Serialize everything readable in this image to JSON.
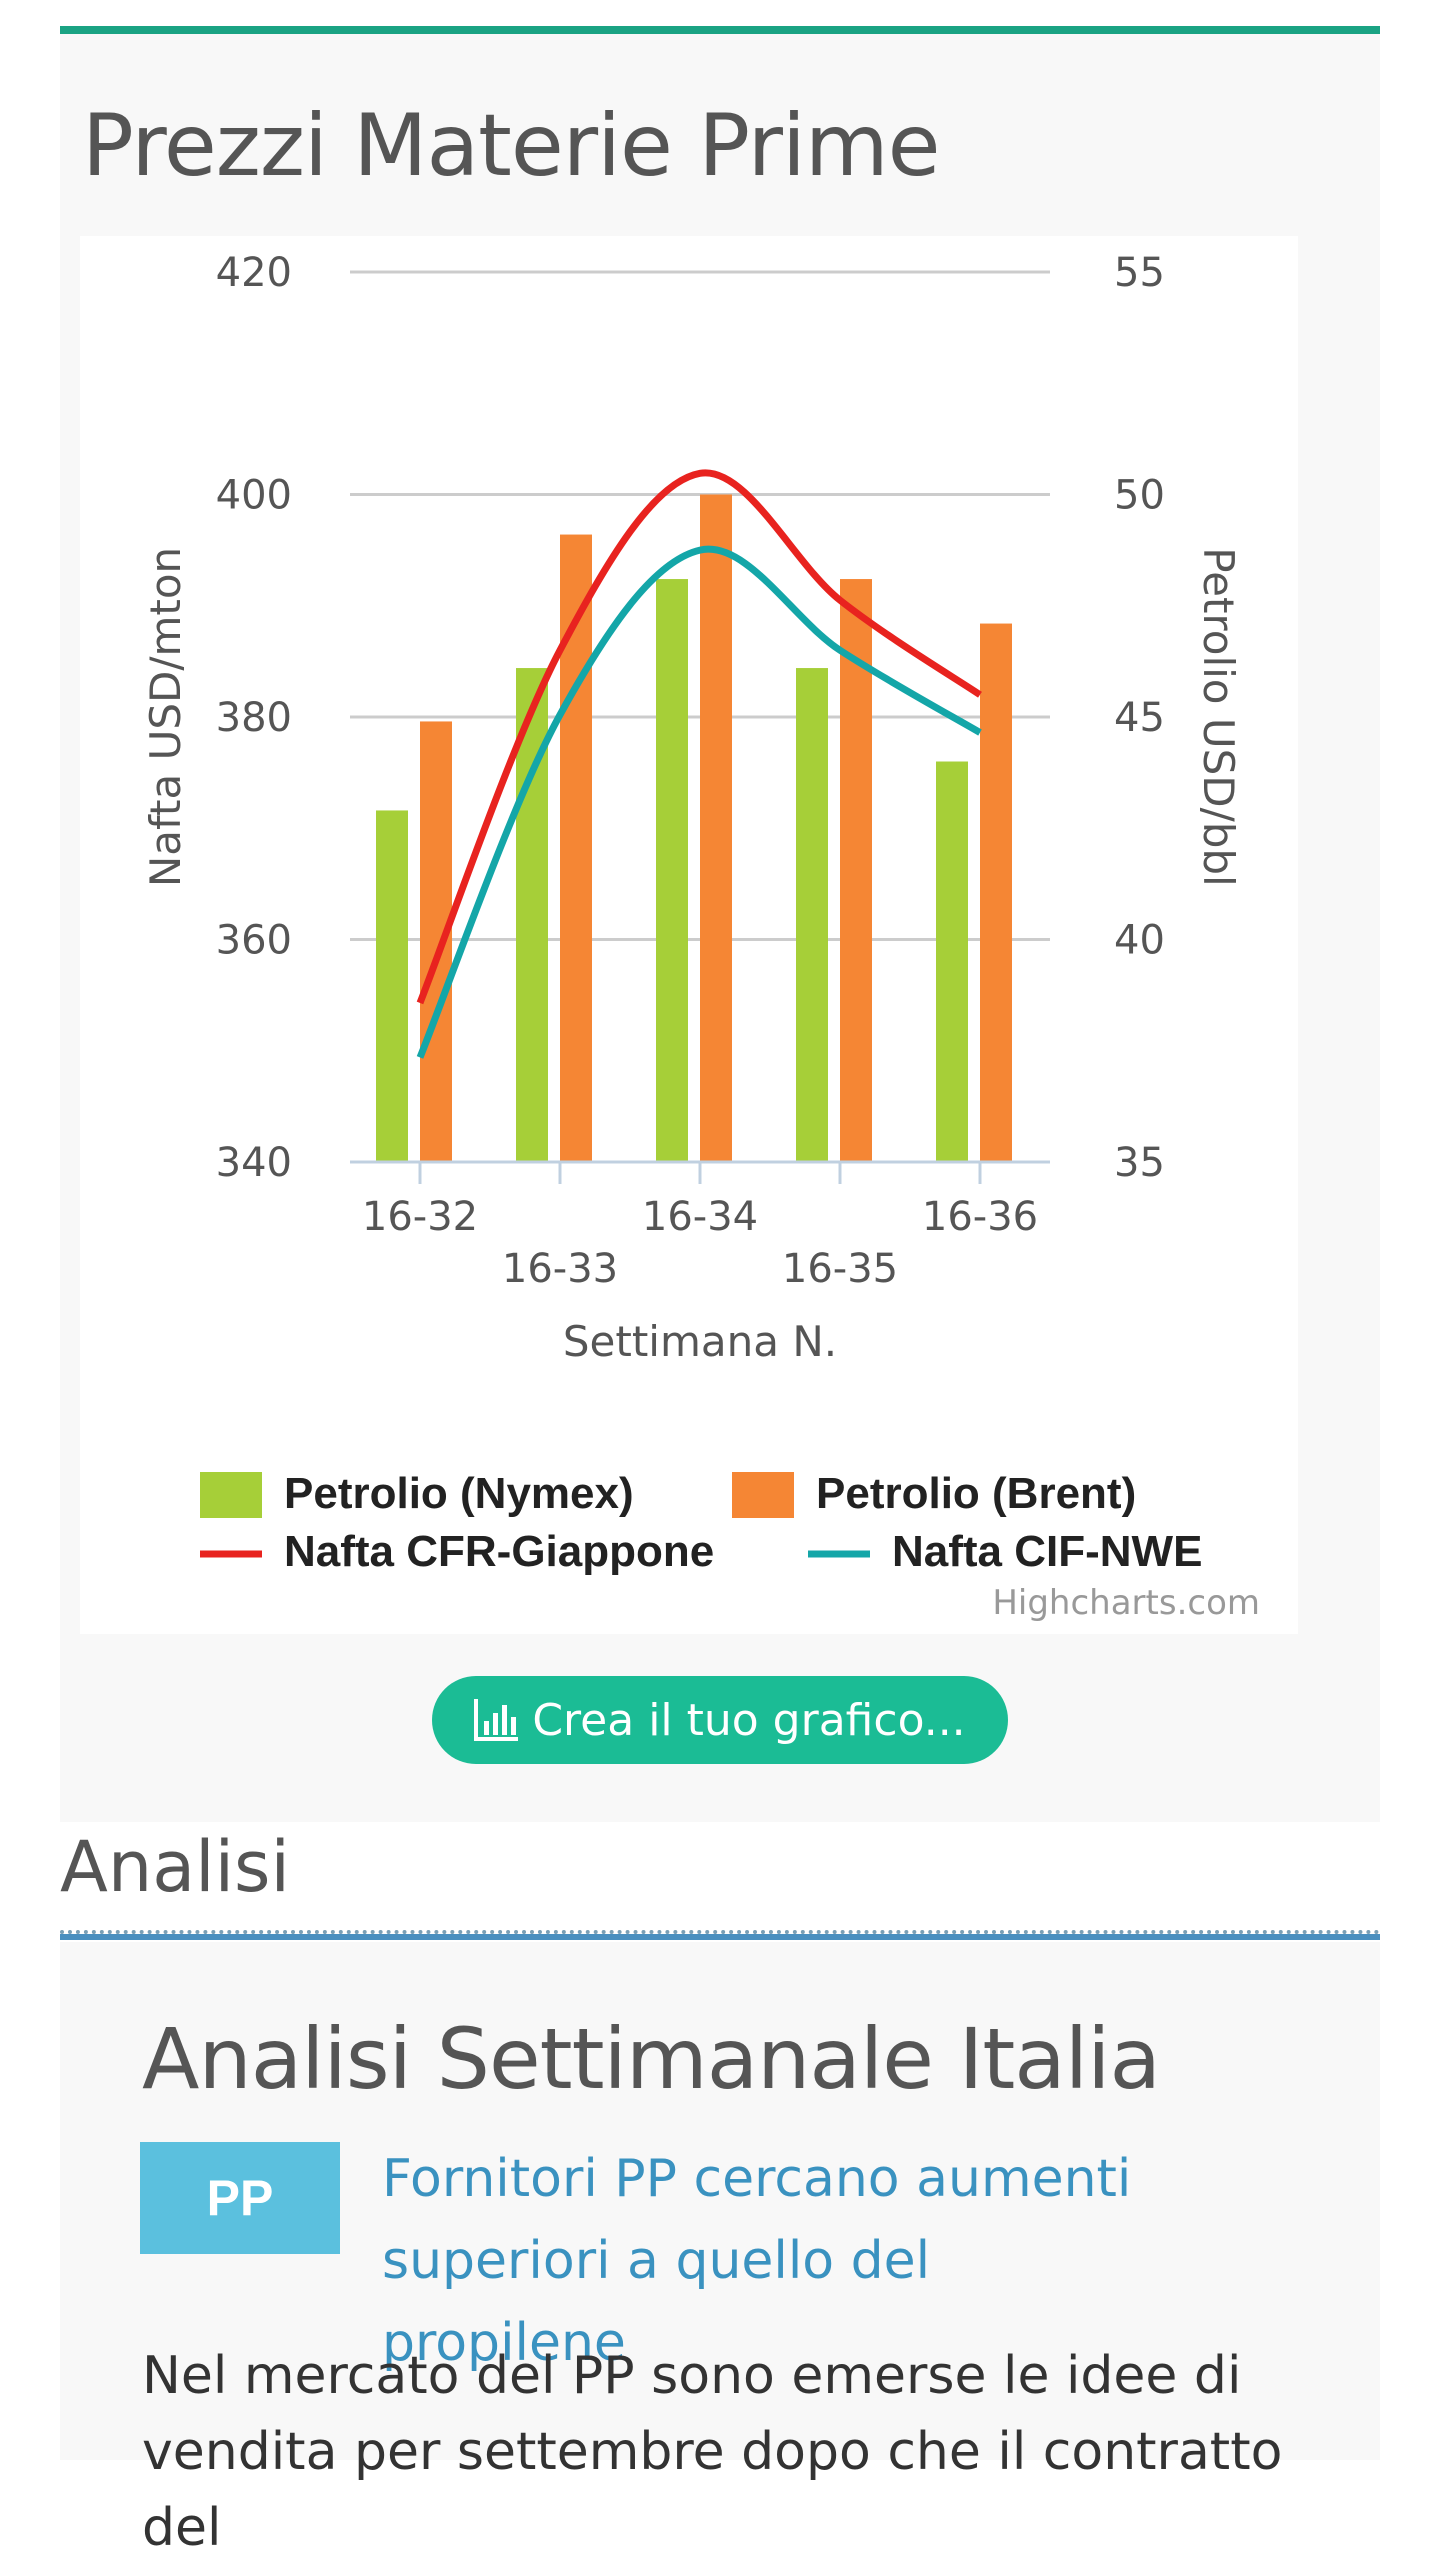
{
  "panel": {
    "title": "Prezzi Materie Prime"
  },
  "chart_data": {
    "type": "bar",
    "title": "",
    "categories": [
      "16-32",
      "16-33",
      "16-34",
      "16-35",
      "16-36"
    ],
    "xlabel": "Settimana N.",
    "ylabel_left": "Nafta USD/mton",
    "ylabel_right": "Petrolio USD/bbl",
    "ylim_left": [
      340,
      420
    ],
    "ylim_right": [
      35,
      55
    ],
    "yticks_left": [
      "340",
      "360",
      "380",
      "400",
      "420"
    ],
    "yticks_right": [
      "35",
      "40",
      "45",
      "50",
      "55"
    ],
    "grid": true,
    "legend_position": "bottom",
    "series": [
      {
        "name": "Petrolio (Nymex)",
        "kind": "bar",
        "axis": "right",
        "color": "#a6cf38",
        "values": [
          42.9,
          46.1,
          48.1,
          46.1,
          44.0
        ]
      },
      {
        "name": "Petrolio (Brent)",
        "kind": "bar",
        "axis": "right",
        "color": "#f58634",
        "values": [
          44.9,
          49.1,
          50.0,
          48.1,
          47.1
        ]
      },
      {
        "name": "Nafta CFR-Giappone",
        "kind": "line",
        "axis": "left",
        "color": "#e8231f",
        "values": [
          354.3,
          386.0,
          401.9,
          390.5,
          382.0
        ]
      },
      {
        "name": "Nafta CIF-NWE",
        "kind": "line",
        "axis": "left",
        "color": "#14a6a8",
        "values": [
          349.4,
          380.2,
          395.0,
          386.0,
          378.6
        ]
      }
    ],
    "credits": "Highcharts.com"
  },
  "button": {
    "label": "Crea il tuo grafico..."
  },
  "section": {
    "title": "Analisi"
  },
  "article": {
    "title": "Analisi Settimanale Italia",
    "tag": "PP",
    "link": "Fornitori PP cercano aumenti superiori a quello del propilene",
    "body": "Nel mercato del PP sono emerse le idee di vendita per settembre dopo che il contratto del"
  }
}
